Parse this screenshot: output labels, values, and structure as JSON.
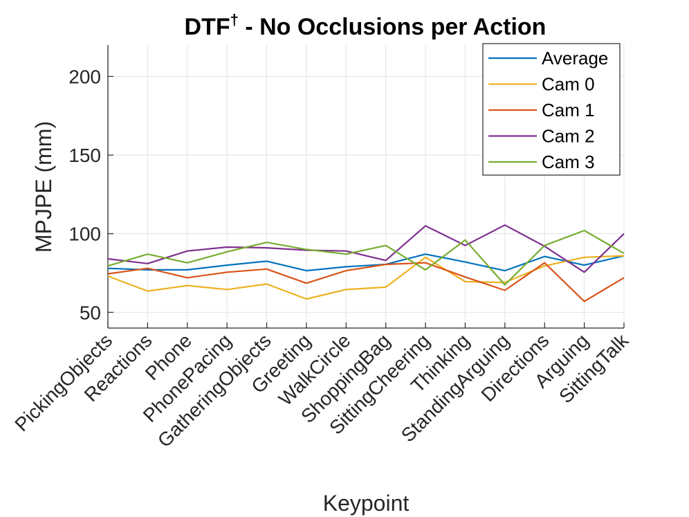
{
  "chart_data": {
    "type": "line",
    "title": "DTF",
    "title_superscript": "†",
    "title_suffix": " - No Occlusions per Action",
    "xlabel": "Keypoint",
    "ylabel": "MPJPE (mm)",
    "ylim": [
      40,
      220
    ],
    "yticks": [
      50,
      100,
      150,
      200
    ],
    "grid": true,
    "legend_position": "top-right",
    "categories": [
      "PickingObjects",
      "Reactions",
      "Phone",
      "PhonePacing",
      "GatheringObjects",
      "Greeting",
      "WalkCircle",
      "ShoppingBag",
      "SittingCheering",
      "Thinking",
      "StandingArguing",
      "Directions",
      "Arguing",
      "SittingTalk"
    ],
    "series": [
      {
        "name": "Average",
        "color": "#0072BD",
        "values": [
          78,
          77,
          77,
          80,
          82.5,
          76.5,
          79,
          80.5,
          87,
          82,
          76.5,
          85.5,
          80,
          86
        ]
      },
      {
        "name": "Cam 0",
        "color": "#EDB120",
        "values": [
          73,
          63.5,
          67,
          64.5,
          68,
          58.5,
          64.5,
          66,
          85,
          69.5,
          69,
          79.5,
          85,
          86
        ]
      },
      {
        "name": "Cam 1",
        "color": "#D95319",
        "values": [
          74.5,
          78,
          72,
          75.5,
          77.5,
          68.5,
          76.5,
          80.5,
          81.5,
          72.5,
          64,
          81.5,
          57,
          72
        ]
      },
      {
        "name": "Cam 2",
        "color": "#7E2F8E",
        "values": [
          84,
          81,
          89,
          91.5,
          91,
          89.5,
          89,
          83,
          105,
          92.5,
          105.5,
          92,
          75.5,
          100
        ]
      },
      {
        "name": "Cam 3",
        "color": "#77AC30",
        "values": [
          79.5,
          87,
          81.5,
          88.5,
          94.5,
          90,
          87,
          92.5,
          77,
          96,
          67.5,
          92.5,
          102,
          87.5
        ]
      }
    ]
  }
}
